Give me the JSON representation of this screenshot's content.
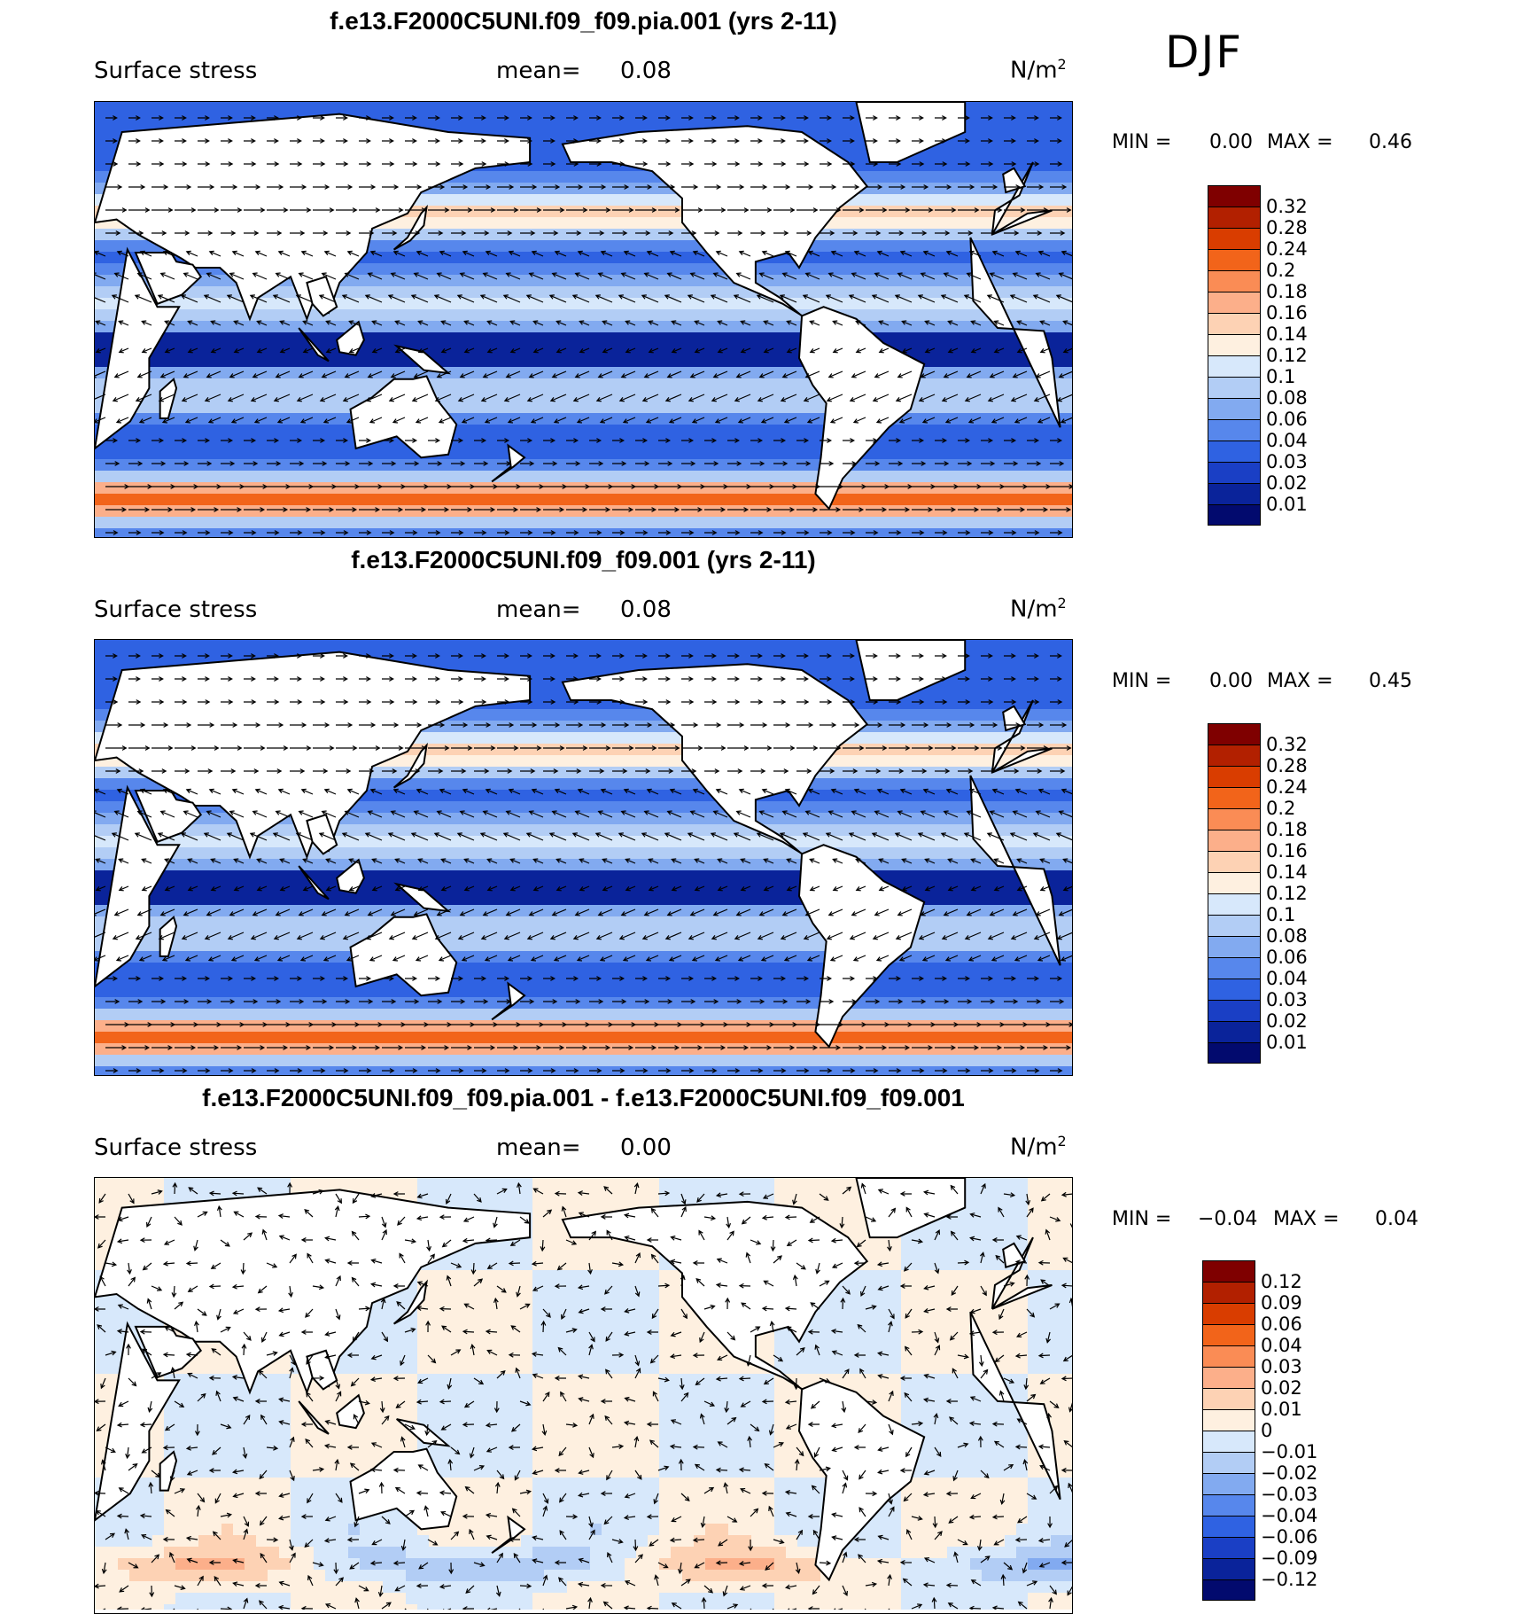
{
  "season": "DJF",
  "panels": [
    {
      "title": "f.e13.F2000C5UNI.f09_f09.pia.001 (yrs 2-11)",
      "variable": "Surface stress",
      "mean_label": "mean=",
      "mean_value": "0.08",
      "units": "N/m",
      "units_exp": "2",
      "min_label": "MIN =",
      "min_value": "0.00",
      "max_label": "MAX =",
      "max_value": "0.46",
      "colorbar": {
        "levels": [
          "0.32",
          "0.28",
          "0.24",
          "0.2",
          "0.18",
          "0.16",
          "0.14",
          "0.12",
          "0.1",
          "0.08",
          "0.06",
          "0.04",
          "0.03",
          "0.02",
          "0.01"
        ],
        "colors": [
          "#7f0000",
          "#b22000",
          "#d93d00",
          "#f2641a",
          "#fa8c55",
          "#fcaf8a",
          "#fdd2b4",
          "#fef0e0",
          "#d7e8fb",
          "#b2cdf5",
          "#82aaf0",
          "#5787ec",
          "#2f62e2",
          "#1a3fc5",
          "#0a239a",
          "#020a6e"
        ]
      },
      "map": {
        "type": "filled-contour-vector",
        "field": "surface wind stress magnitude and vectors",
        "projection": "cylindrical equidistant"
      }
    },
    {
      "title": "f.e13.F2000C5UNI.f09_f09.001 (yrs 2-11)",
      "variable": "Surface stress",
      "mean_label": "mean=",
      "mean_value": "0.08",
      "units": "N/m",
      "units_exp": "2",
      "min_label": "MIN =",
      "min_value": "0.00",
      "max_label": "MAX =",
      "max_value": "0.45",
      "colorbar": {
        "levels": [
          "0.32",
          "0.28",
          "0.24",
          "0.2",
          "0.18",
          "0.16",
          "0.14",
          "0.12",
          "0.1",
          "0.08",
          "0.06",
          "0.04",
          "0.03",
          "0.02",
          "0.01"
        ],
        "colors": [
          "#7f0000",
          "#b22000",
          "#d93d00",
          "#f2641a",
          "#fa8c55",
          "#fcaf8a",
          "#fdd2b4",
          "#fef0e0",
          "#d7e8fb",
          "#b2cdf5",
          "#82aaf0",
          "#5787ec",
          "#2f62e2",
          "#1a3fc5",
          "#0a239a",
          "#020a6e"
        ]
      },
      "map": {
        "type": "filled-contour-vector",
        "field": "surface wind stress magnitude and vectors",
        "projection": "cylindrical equidistant"
      }
    },
    {
      "title": "f.e13.F2000C5UNI.f09_f09.pia.001 - f.e13.F2000C5UNI.f09_f09.001",
      "variable": "Surface stress",
      "mean_label": "mean=",
      "mean_value": "0.00",
      "units": "N/m",
      "units_exp": "2",
      "min_label": "MIN =",
      "min_value": "−0.04",
      "max_label": "MAX =",
      "max_value": "0.04",
      "colorbar": {
        "levels": [
          "0.12",
          "0.09",
          "0.06",
          "0.04",
          "0.03",
          "0.02",
          "0.01",
          "0",
          "−0.01",
          "−0.02",
          "−0.03",
          "−0.04",
          "−0.06",
          "−0.09",
          "−0.12"
        ],
        "colors": [
          "#7f0000",
          "#b22000",
          "#d93d00",
          "#f2641a",
          "#fa8c55",
          "#fcaf8a",
          "#fdd2b4",
          "#fef0e0",
          "#d7e8fb",
          "#b2cdf5",
          "#82aaf0",
          "#5787ec",
          "#2f62e2",
          "#1a3fc5",
          "#0a239a",
          "#020a6e"
        ]
      },
      "map": {
        "type": "filled-contour-vector",
        "field": "surface wind stress difference",
        "projection": "cylindrical equidistant"
      }
    }
  ]
}
